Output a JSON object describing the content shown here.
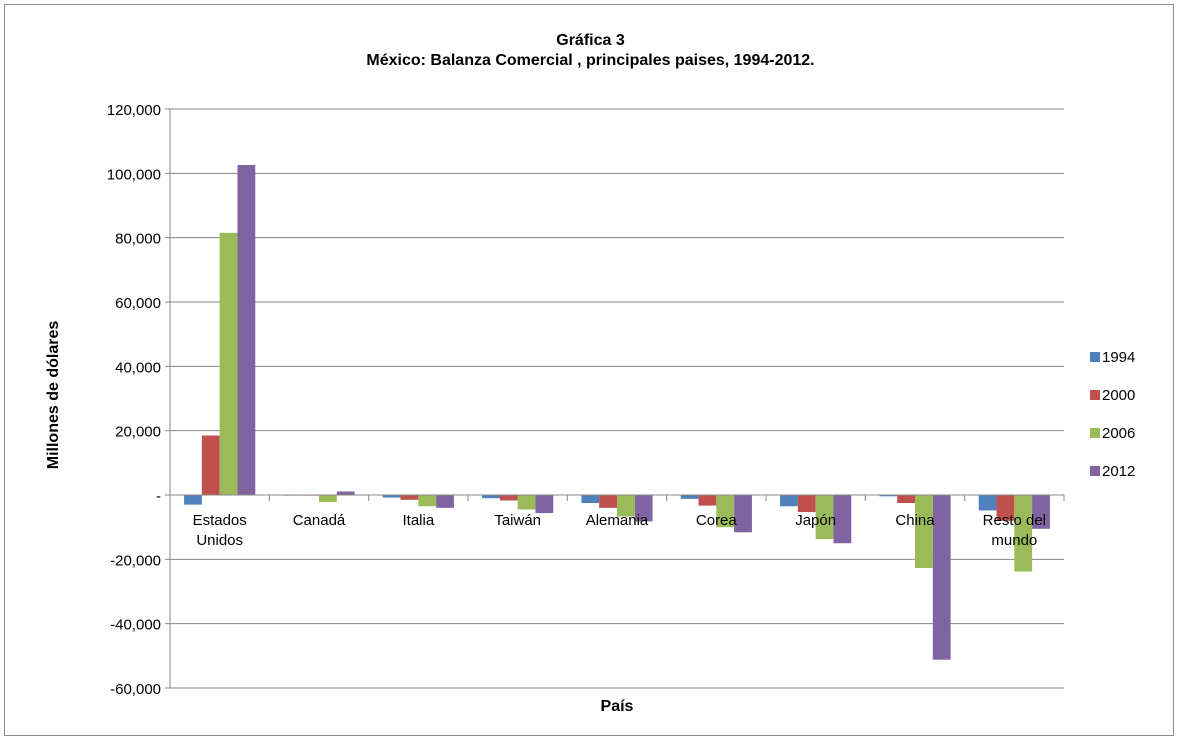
{
  "chart_data": {
    "type": "bar",
    "title": "Gráfica 3",
    "subtitle": "México: Balanza Comercial , principales paises, 1994-2012.",
    "xlabel": "País",
    "ylabel": "Millones de dólares",
    "ylim": [
      -60000,
      120000
    ],
    "y_ticks": [
      "120,000",
      "100,000",
      "80,000",
      "60,000",
      "40,000",
      "20,000",
      "-",
      "-20,000",
      "-40,000",
      "-60,000"
    ],
    "y_tick_values": [
      120000,
      100000,
      80000,
      60000,
      40000,
      20000,
      0,
      -20000,
      -40000,
      -60000
    ],
    "grid": true,
    "legend_position": "right",
    "categories": [
      [
        "Estados",
        "Unidos"
      ],
      [
        "Canadá"
      ],
      [
        "Italia"
      ],
      [
        "Taiwán"
      ],
      [
        "Alemania"
      ],
      [
        "Corea"
      ],
      [
        "Japón"
      ],
      [
        "China"
      ],
      [
        "Resto del",
        "mundo"
      ]
    ],
    "series": [
      {
        "name": "1994",
        "color": "#4f81bd",
        "values": [
          -3000,
          -200,
          -800,
          -1000,
          -2500,
          -1200,
          -3500,
          -400,
          -4800
        ]
      },
      {
        "name": "2000",
        "color": "#c0504d",
        "values": [
          18500,
          -200,
          -1500,
          -1700,
          -4000,
          -3300,
          -5300,
          -2500,
          -8000
        ]
      },
      {
        "name": "2006",
        "color": "#9bbb59",
        "values": [
          81500,
          -2200,
          -3500,
          -4500,
          -6700,
          -10000,
          -13700,
          -22700,
          -23800
        ]
      },
      {
        "name": "2012",
        "color": "#8064a2",
        "values": [
          102600,
          1100,
          -4000,
          -5600,
          -8200,
          -11600,
          -15000,
          -51200,
          -10500
        ]
      }
    ]
  }
}
